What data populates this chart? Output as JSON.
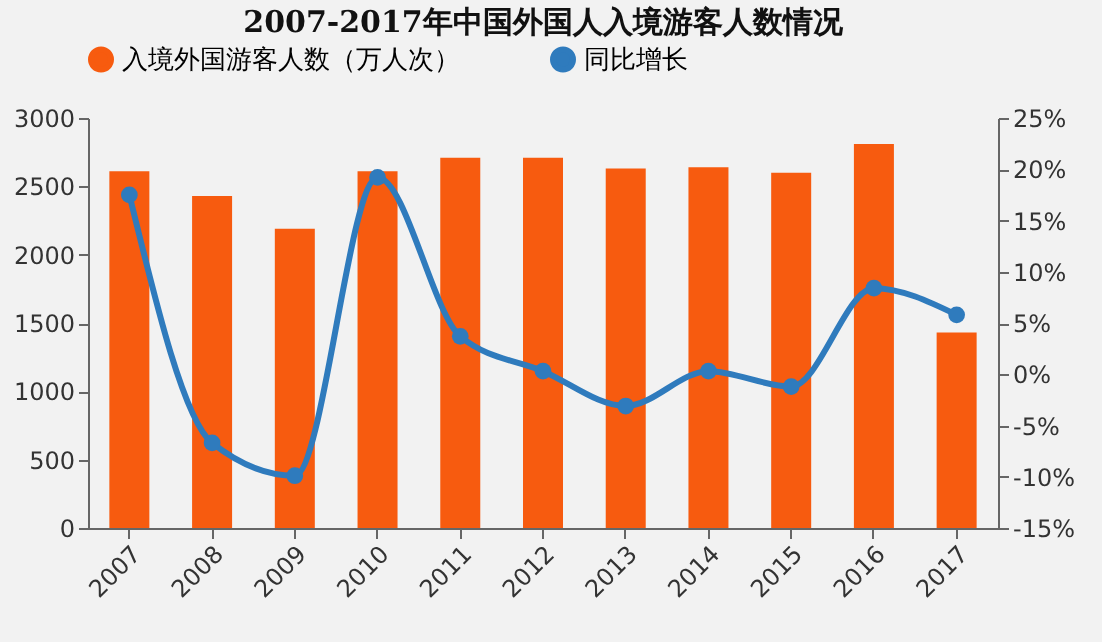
{
  "chart_data": {
    "type": "bar",
    "title": "2007-2017年中国外国人入境游客人数情况",
    "categories": [
      "2007",
      "2008",
      "2009",
      "2010",
      "2011",
      "2012",
      "2013",
      "2014",
      "2015",
      "2016",
      "2017"
    ],
    "series": [
      {
        "name": "入境外国游客人数（万人次）",
        "color": "#f75b0f",
        "values": [
          2610,
          2430,
          2190,
          2610,
          2710,
          2710,
          2630,
          2640,
          2600,
          2810,
          1430
        ]
      },
      {
        "name": "同比增长",
        "type": "line",
        "axis": "y2",
        "color": "#2f7bbd",
        "values": [
          17.5,
          -6.7,
          -9.9,
          19.2,
          3.7,
          0.3,
          -3.1,
          0.3,
          -1.2,
          8.4,
          5.8
        ]
      }
    ],
    "ylim": [
      0,
      3000
    ],
    "yticks": [
      0,
      500,
      1000,
      1500,
      2000,
      2500,
      3000
    ],
    "y2lim": [
      -15,
      25
    ],
    "y2ticks": [
      {
        "value": -15,
        "label": "-15%"
      },
      {
        "value": -10,
        "label": "-10%"
      },
      {
        "value": -5,
        "label": "-5%"
      },
      {
        "value": 0,
        "label": "0%"
      },
      {
        "value": 5,
        "label": "5%"
      },
      {
        "value": 10,
        "label": "10%"
      },
      {
        "value": 15,
        "label": "15%"
      },
      {
        "value": 20,
        "label": "20%"
      },
      {
        "value": 25,
        "label": "25%"
      }
    ],
    "legend": "top",
    "marker": "circle",
    "line_style": "solid",
    "grid": false
  }
}
